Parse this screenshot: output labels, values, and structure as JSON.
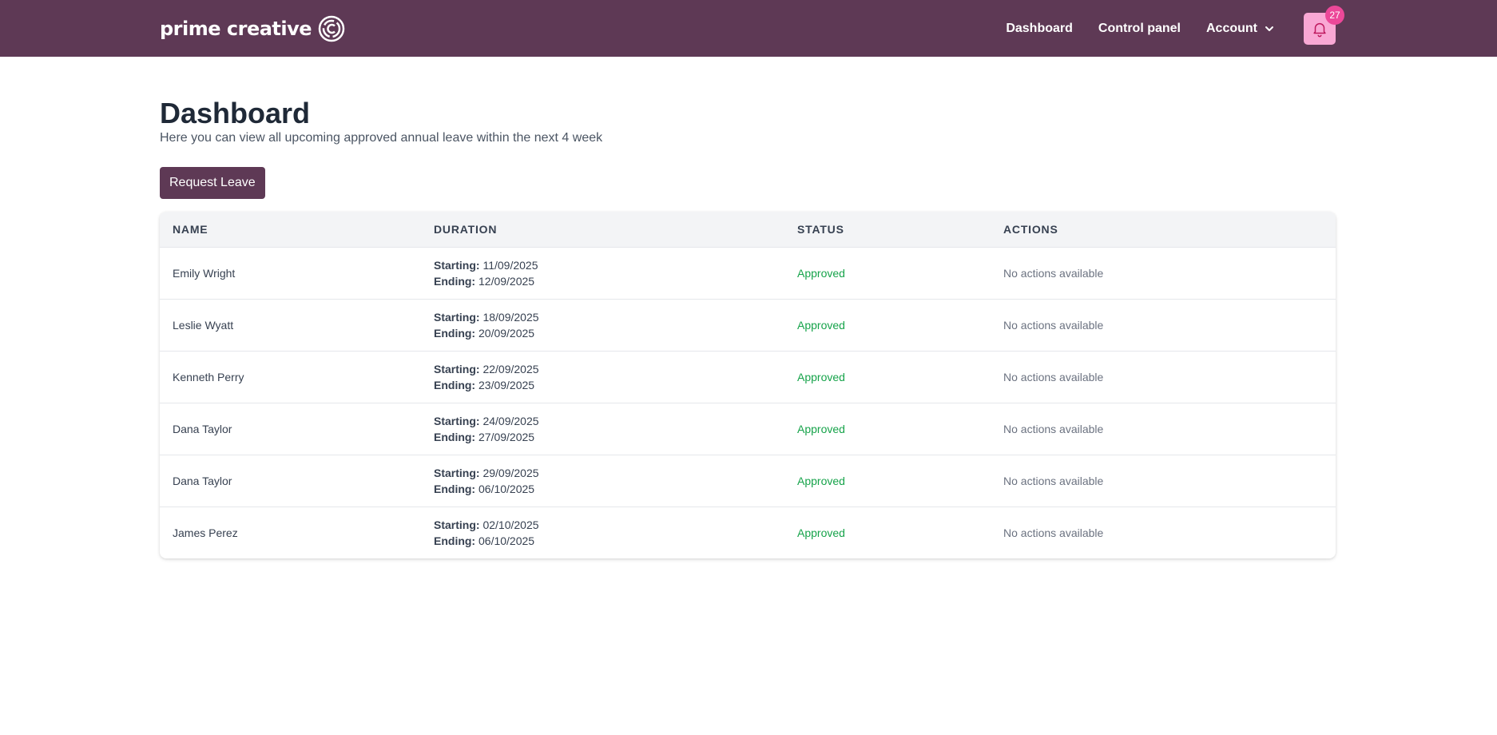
{
  "nav": {
    "brand": "prime creative",
    "links": [
      "Dashboard",
      "Control panel",
      "Account"
    ],
    "notification_count": "27"
  },
  "page": {
    "title": "Dashboard",
    "subtitle": "Here you can view all upcoming approved annual leave within the next 4 week",
    "request_button": "Request Leave"
  },
  "table": {
    "headers": [
      "NAME",
      "DURATION",
      "STATUS",
      "ACTIONS"
    ],
    "starting_label": "Starting:",
    "ending_label": "Ending:",
    "rows": [
      {
        "name": "Emily Wright",
        "start": "11/09/2025",
        "end": "12/09/2025",
        "status": "Approved",
        "actions": "No actions available"
      },
      {
        "name": "Leslie Wyatt",
        "start": "18/09/2025",
        "end": "20/09/2025",
        "status": "Approved",
        "actions": "No actions available"
      },
      {
        "name": "Kenneth Perry",
        "start": "22/09/2025",
        "end": "23/09/2025",
        "status": "Approved",
        "actions": "No actions available"
      },
      {
        "name": "Dana Taylor",
        "start": "24/09/2025",
        "end": "27/09/2025",
        "status": "Approved",
        "actions": "No actions available"
      },
      {
        "name": "Dana Taylor",
        "start": "29/09/2025",
        "end": "06/10/2025",
        "status": "Approved",
        "actions": "No actions available"
      },
      {
        "name": "James Perez",
        "start": "02/10/2025",
        "end": "06/10/2025",
        "status": "Approved",
        "actions": "No actions available"
      }
    ]
  },
  "colors": {
    "brand": "#5e3955",
    "notification_bg": "#f9a8d4",
    "badge": "#ec4899",
    "approved": "#16a34a"
  },
  "icons": {
    "logo": "brand-logo-icon",
    "account_dropdown": "chevron-down-icon",
    "notifications": "bell-icon"
  }
}
